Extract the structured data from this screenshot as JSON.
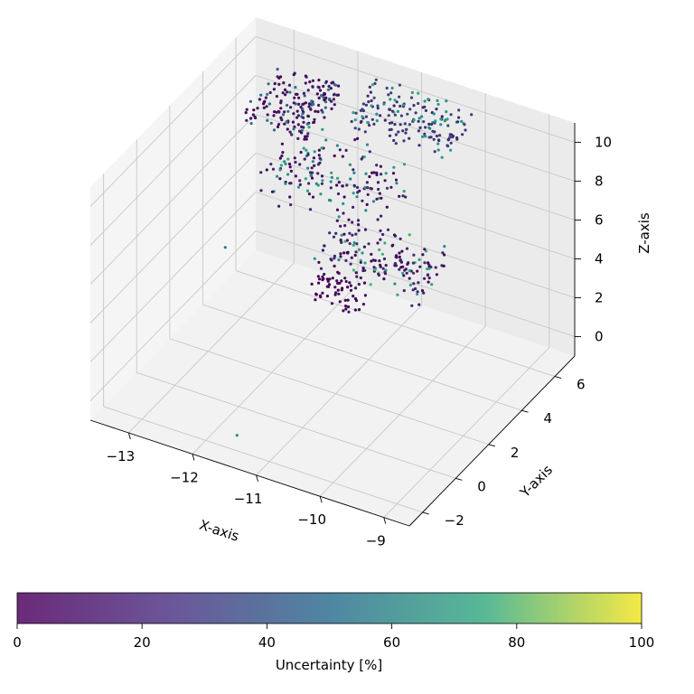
{
  "chart_data": {
    "type": "scatter",
    "projection": "3d",
    "title": "",
    "xlabel": "X-axis",
    "ylabel": "Y-axis",
    "zlabel": "Z-axis",
    "xticks": [
      "−13",
      "−12",
      "−11",
      "−10",
      "−9"
    ],
    "yticks": [
      "−2",
      "0",
      "2",
      "4",
      "6"
    ],
    "zticks": [
      "0",
      "2",
      "4",
      "6",
      "8",
      "10"
    ],
    "xlim": [
      -13.6,
      -8.6
    ],
    "ylim": [
      -2.8,
      7.2
    ],
    "zlim": [
      -1.0,
      11.0
    ],
    "grid": true,
    "colormap": "viridis",
    "colorbar": {
      "label": "Uncertainty [%]",
      "ticks": [
        "0",
        "20",
        "40",
        "60",
        "80",
        "100"
      ],
      "range": [
        0,
        100
      ],
      "orientation": "horizontal",
      "placement": "bottom"
    },
    "clusters": [
      {
        "x": [
          -13.0,
          -12.0
        ],
        "y": [
          4.0,
          6.6
        ],
        "z": [
          9.0,
          10.0
        ],
        "uncertainty": [
          0,
          40
        ],
        "density": "dense"
      },
      {
        "x": [
          -11.6,
          -10.0
        ],
        "y": [
          4.8,
          6.8
        ],
        "z": [
          9.5,
          10.6
        ],
        "uncertainty": [
          10,
          60
        ],
        "density": "dense"
      },
      {
        "x": [
          -12.3,
          -10.5
        ],
        "y": [
          2.0,
          4.8
        ],
        "z": [
          7.5,
          9.5
        ],
        "uncertainty": [
          0,
          60
        ],
        "density": "dense"
      },
      {
        "x": [
          -11.0,
          -9.3
        ],
        "y": [
          0.5,
          2.5
        ],
        "z": [
          6.5,
          8.0
        ],
        "uncertainty": [
          0,
          65
        ],
        "density": "dense"
      },
      {
        "x": [
          -11.3,
          -10.6
        ],
        "y": [
          1.6,
          2.4
        ],
        "z": [
          3.6,
          5.2
        ],
        "uncertainty": [
          0,
          5
        ],
        "density": "medium"
      },
      {
        "x": [
          -12.9,
          -12.7
        ],
        "y": [
          2.0,
          2.2
        ],
        "z": [
          4.4,
          4.6
        ],
        "uncertainty": [
          40,
          50
        ],
        "density": "single"
      },
      {
        "x": [
          -11.6,
          -11.4
        ],
        "y": [
          -2.2,
          -2.0
        ],
        "z": [
          -0.1,
          0.1
        ],
        "uncertainty": [
          50,
          60
        ],
        "density": "single"
      }
    ]
  }
}
